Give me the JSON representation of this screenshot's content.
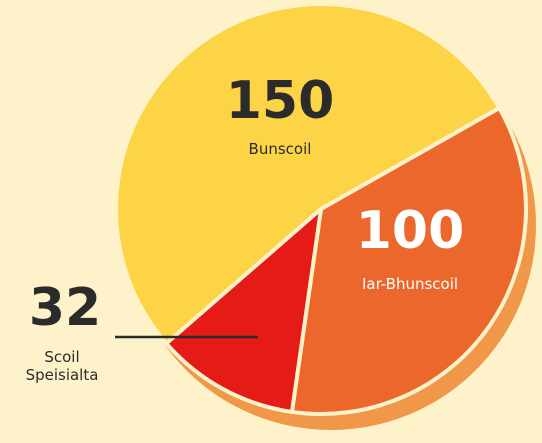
{
  "chart_data": {
    "type": "pie",
    "categories": [
      "Bunscoil",
      "Iar-Bhunscoil",
      "Scoil Speisialta"
    ],
    "values": [
      150,
      100,
      32
    ],
    "colors": [
      "#fdd446",
      "#ec672b",
      "#e41b17"
    ]
  }
}
